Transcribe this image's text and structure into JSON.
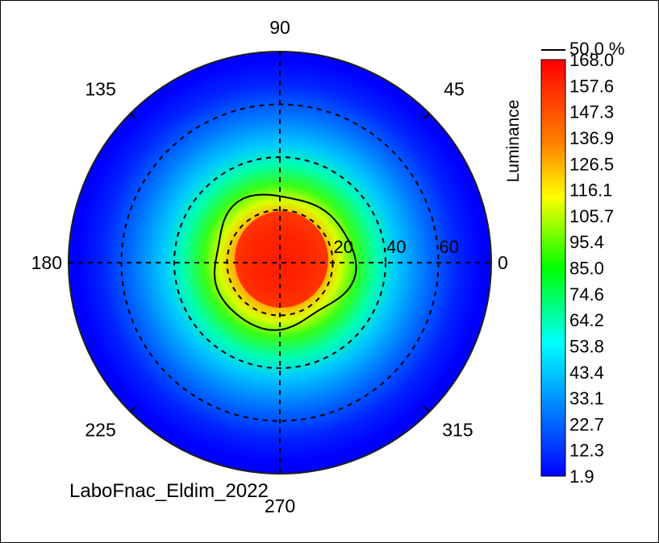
{
  "chart_data": {
    "type": "heatmap",
    "projection": "polar",
    "title": "",
    "angle_labels": [
      "90",
      "45",
      "0",
      "315",
      "270",
      "225",
      "180",
      "135"
    ],
    "angle_values_deg": [
      90,
      45,
      0,
      315,
      270,
      225,
      180,
      135
    ],
    "radial_ticks": [
      20,
      40,
      60
    ],
    "radial_max": 80,
    "grid": true,
    "colorbar": {
      "label": "Luminance",
      "min": 1.9,
      "max": 168.0,
      "ticks": [
        "168.0",
        "157.6",
        "147.3",
        "136.9",
        "126.5",
        "116.1",
        "105.7",
        "95.4",
        "85.0",
        "74.6",
        "64.2",
        "53.8",
        "43.4",
        "33.1",
        "22.7",
        "12.3",
        "1.9"
      ]
    },
    "contour": {
      "legend_label": "50.0 %",
      "level": 84,
      "radius_deg": 26,
      "center_offset_deg": 0
    },
    "hotspot": {
      "center_r_deg": 3,
      "center_theta_deg": 90,
      "max_value": 168.0
    },
    "footer": "LaboFnac_Eldim_2022"
  },
  "colors": {
    "low": "#0000ff",
    "mid_low": "#00ffff",
    "mid": "#00ff00",
    "mid_high": "#ffff00",
    "high": "#ff0000",
    "grid": "#000000"
  }
}
